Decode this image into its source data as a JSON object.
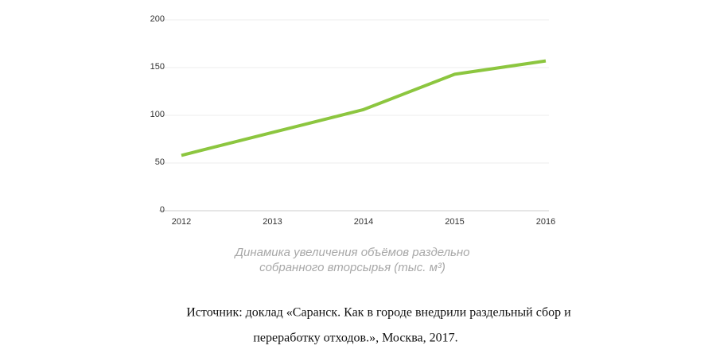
{
  "chart_data": {
    "type": "line",
    "title_lines": [
      "Динамика увеличения объёмов раздельно",
      "собранного вторсырья (тыс. м³)"
    ],
    "x": [
      2012,
      2013,
      2014,
      2015,
      2016
    ],
    "xlim": [
      2012,
      2016
    ],
    "xticks": [
      2012,
      2013,
      2014,
      2015,
      2016
    ],
    "series": [
      {
        "color": "#8cc63f",
        "values": [
          58,
          82,
          106,
          143,
          157
        ]
      }
    ],
    "ylim": [
      0,
      200
    ],
    "yticks": [
      0,
      50,
      100,
      150,
      200
    ],
    "grid": true
  },
  "source_lines": [
    "Источник: доклад «Саранск. Как в городе внедрили раздельный сбор и",
    "переработку отходов.», Москва, 2017."
  ]
}
